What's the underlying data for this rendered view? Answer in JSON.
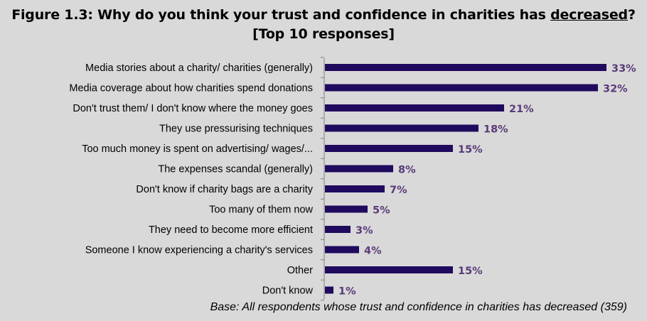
{
  "title": {
    "line1_before": "Figure 1.3: Why do you think your trust and confidence in charities has ",
    "line1_underlined": "decreased",
    "line1_after": "?",
    "line2": "[Top 10 responses]"
  },
  "note": "Base: All respondents whose trust and confidence in charities has decreased (359)",
  "colors": {
    "bar": "#1f0a5e",
    "value_label": "#5a3a78",
    "background": "#d9d9d9",
    "axis": "#808080"
  },
  "chart_data": {
    "type": "bar",
    "orientation": "horizontal",
    "categories": [
      "Media stories about a charity/ charities (generally)",
      "Media coverage about how charities spend donations",
      "Don't trust them/ I don't know where the money goes",
      "They use pressurising techniques",
      "Too much money is spent on advertising/ wages/...",
      "The expenses scandal (generally)",
      "Don't know if charity bags are a charity",
      "Too many of them now",
      "They need to become more efficient",
      "Someone I know experiencing a charity's services",
      "Other",
      "Don't know"
    ],
    "values": [
      33,
      32,
      21,
      18,
      15,
      8,
      7,
      5,
      3,
      4,
      15,
      1
    ],
    "value_labels": [
      "33%",
      "32%",
      "21%",
      "18%",
      "15%",
      "8%",
      "7%",
      "5%",
      "3%",
      "4%",
      "15%",
      "1%"
    ],
    "xlim": [
      0,
      33
    ],
    "grid": false,
    "legend": "none"
  }
}
